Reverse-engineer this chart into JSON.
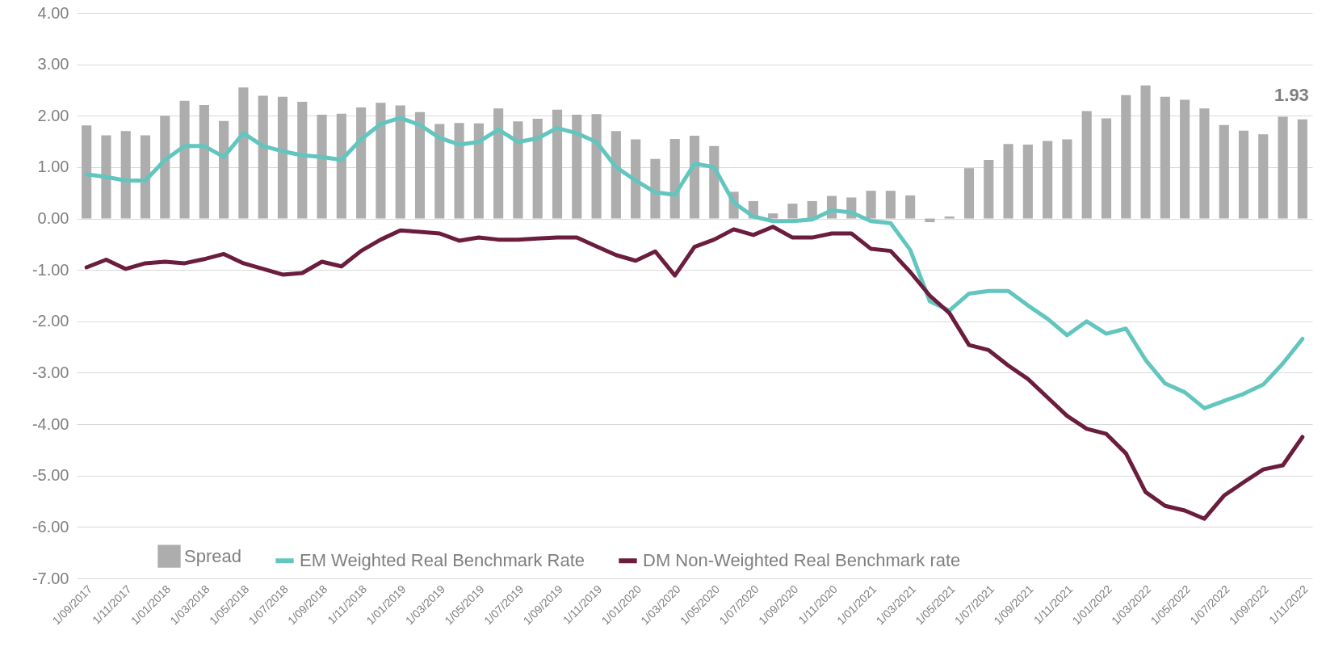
{
  "chart_data": {
    "type": "bar",
    "categories": [
      "1/09/2017",
      null,
      "1/11/2017",
      null,
      "1/01/2018",
      null,
      "1/03/2018",
      null,
      "1/05/2018",
      null,
      "1/07/2018",
      null,
      "1/09/2018",
      null,
      "1/11/2018",
      null,
      "1/01/2019",
      null,
      "1/03/2019",
      null,
      "1/05/2019",
      null,
      "1/07/2019",
      null,
      "1/09/2019",
      null,
      "1/11/2019",
      null,
      "1/01/2020",
      null,
      "1/03/2020",
      null,
      "1/05/2020",
      null,
      "1/07/2020",
      null,
      "1/09/2020",
      null,
      "1/11/2020",
      null,
      "1/01/2021",
      null,
      "1/03/2021",
      null,
      "1/05/2021",
      null,
      "1/07/2021",
      null,
      "1/09/2021",
      null,
      "1/11/2021",
      null,
      "1/01/2022",
      null,
      "1/03/2022",
      null,
      "1/05/2022",
      null,
      "1/07/2022",
      null,
      "1/09/2022",
      null,
      "1/11/2022"
    ],
    "series": [
      {
        "name": "Spread",
        "color": "#adadad",
        "values": [
          1.81,
          1.62,
          1.7,
          1.62,
          2.0,
          2.29,
          2.21,
          1.9,
          2.55,
          2.39,
          2.37,
          2.27,
          2.02,
          2.04,
          2.16,
          2.25,
          2.2,
          2.07,
          1.84,
          1.86,
          1.85,
          2.14,
          1.89,
          1.94,
          2.12,
          2.02,
          2.03,
          1.7,
          1.54,
          1.16,
          1.55,
          1.61,
          1.41,
          0.52,
          0.34,
          0.1,
          0.29,
          0.34,
          0.44,
          0.41,
          0.54,
          0.54,
          0.45,
          -0.07,
          0.04,
          0.98,
          1.14,
          1.45,
          1.44,
          1.51,
          1.54,
          2.09,
          1.95,
          2.4,
          2.59,
          2.37,
          2.31,
          2.14,
          1.82,
          1.71,
          1.64,
          1.98,
          1.93
        ],
        "value_labels": [
          null,
          null,
          null,
          null,
          null,
          null,
          null,
          null,
          null,
          null,
          null,
          null,
          null,
          null,
          null,
          null,
          null,
          null,
          null,
          null,
          null,
          null,
          null,
          null,
          null,
          null,
          null,
          null,
          null,
          null,
          null,
          null,
          null,
          null,
          null,
          null,
          null,
          null,
          null,
          null,
          null,
          null,
          null,
          null,
          null,
          null,
          null,
          null,
          null,
          null,
          null,
          null,
          null,
          null,
          null,
          null,
          null,
          null,
          null,
          null,
          null,
          null,
          "1.93"
        ]
      },
      {
        "name": "EM Weighted Real Benchmark Rate",
        "type": "line",
        "color": "#62c6bf",
        "values": [
          0.86,
          0.81,
          0.74,
          0.74,
          1.14,
          1.41,
          1.41,
          1.2,
          1.66,
          1.41,
          1.31,
          1.23,
          1.2,
          1.14,
          1.54,
          1.84,
          1.96,
          1.82,
          1.57,
          1.44,
          1.49,
          1.73,
          1.49,
          1.56,
          1.76,
          1.66,
          1.49,
          1.0,
          0.74,
          0.51,
          0.46,
          1.07,
          1.0,
          0.31,
          0.04,
          -0.05,
          -0.05,
          -0.02,
          0.16,
          0.12,
          -0.05,
          -0.09,
          -0.61,
          -1.61,
          -1.79,
          -1.46,
          -1.41,
          -1.41,
          -1.69,
          -1.95,
          -2.27,
          -2.0,
          -2.24,
          -2.14,
          -2.75,
          -3.21,
          -3.38,
          -3.69,
          -3.55,
          -3.41,
          -3.23,
          -2.82,
          -2.34
        ]
      },
      {
        "name": "DM Non-Weighted Real Benchmark rate",
        "type": "line",
        "color": "#6b1d3e",
        "values": [
          -0.95,
          -0.8,
          -0.98,
          -0.87,
          -0.84,
          -0.87,
          -0.79,
          -0.69,
          -0.87,
          -0.98,
          -1.09,
          -1.06,
          -0.84,
          -0.93,
          -0.63,
          -0.41,
          -0.23,
          -0.26,
          -0.29,
          -0.43,
          -0.37,
          -0.41,
          -0.41,
          -0.39,
          -0.37,
          -0.37,
          -0.54,
          -0.71,
          -0.82,
          -0.64,
          -1.11,
          -0.55,
          -0.41,
          -0.21,
          -0.32,
          -0.16,
          -0.37,
          -0.37,
          -0.29,
          -0.29,
          -0.59,
          -0.63,
          -1.04,
          -1.5,
          -1.84,
          -2.46,
          -2.56,
          -2.86,
          -3.12,
          -3.48,
          -3.84,
          -4.09,
          -4.19,
          -4.57,
          -5.32,
          -5.59,
          -5.68,
          -5.84,
          -5.39,
          -5.13,
          -4.88,
          -4.8,
          -4.25
        ]
      }
    ],
    "ylim": [
      -7,
      4
    ],
    "yticks": [
      {
        "value": -7,
        "label": "-7.00"
      },
      {
        "value": -6,
        "label": "-6.00"
      },
      {
        "value": -5,
        "label": "-5.00"
      },
      {
        "value": -4,
        "label": "-4.00"
      },
      {
        "value": -3,
        "label": "-3.00"
      },
      {
        "value": -2,
        "label": "-2.00"
      },
      {
        "value": -1,
        "label": "-1.00"
      },
      {
        "value": 0,
        "label": "0.00"
      },
      {
        "value": 1,
        "label": "1.00"
      },
      {
        "value": 2,
        "label": "2.00"
      },
      {
        "value": 3,
        "label": "3.00"
      },
      {
        "value": 4,
        "label": "4.00"
      }
    ],
    "grid": "y",
    "legend": "bottom"
  }
}
